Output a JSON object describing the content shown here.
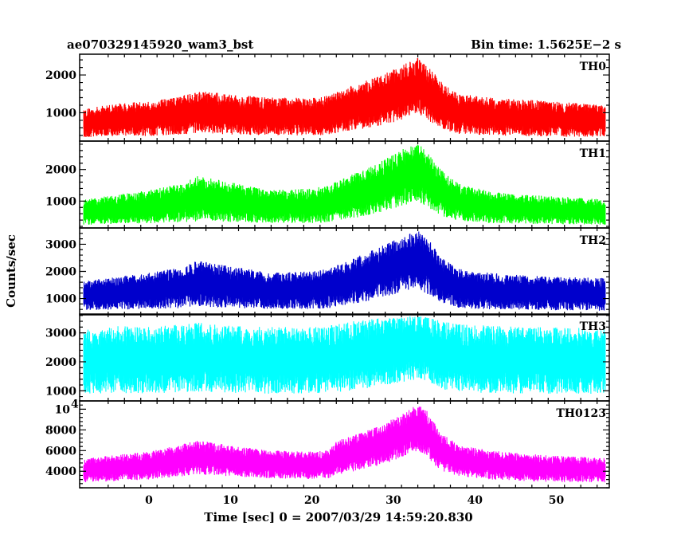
{
  "header": {
    "title_left": "ae070329145920_wam3_bst",
    "title_right": "Bin time: 1.5625E−2 s"
  },
  "chart_data": {
    "type": "line",
    "title": "ae070329145920_wam3_bst",
    "bin_time": "Bin time: 1.5625E−2 s",
    "xlabel": "Time [sec] 0 = 2007/03/29 14:59:20.830",
    "ylabel": "Counts/sec",
    "xlim": [
      -8.5,
      56.5
    ],
    "xticks": [
      0,
      10,
      20,
      30,
      40,
      50
    ],
    "xtick_labels": [
      "0",
      "10",
      "20",
      "30",
      "40",
      "50"
    ],
    "grid": false,
    "panels": [
      {
        "name": "TH0",
        "color": "#ff0000",
        "ylim": [
          250,
          2550
        ],
        "yticks": [
          1000,
          2000
        ],
        "ytick_labels": [
          "1000",
          "2000"
        ],
        "x": [
          -8,
          -4,
          0,
          4,
          6,
          10,
          15,
          20,
          22,
          24,
          26,
          28,
          30,
          32,
          33,
          34,
          36,
          38,
          42,
          46,
          50,
          56
        ],
        "low": [
          350,
          380,
          380,
          420,
          460,
          420,
          400,
          400,
          410,
          500,
          560,
          640,
          740,
          870,
          950,
          820,
          560,
          440,
          400,
          380,
          370,
          350
        ],
        "high": [
          1100,
          1250,
          1300,
          1450,
          1600,
          1480,
          1400,
          1400,
          1450,
          1650,
          1800,
          1950,
          2150,
          2350,
          2450,
          2300,
          1800,
          1500,
          1400,
          1350,
          1300,
          1200
        ]
      },
      {
        "name": "TH1",
        "color": "#00ff00",
        "ylim": [
          150,
          2900
        ],
        "yticks": [
          1000,
          2000
        ],
        "ytick_labels": [
          "1000",
          "2000"
        ],
        "x": [
          -8,
          -4,
          0,
          4,
          6,
          10,
          15,
          20,
          22,
          24,
          26,
          28,
          30,
          32,
          33,
          34,
          36,
          38,
          42,
          46,
          50,
          56
        ],
        "low": [
          250,
          280,
          300,
          330,
          360,
          340,
          300,
          300,
          320,
          420,
          500,
          620,
          760,
          900,
          980,
          840,
          520,
          380,
          300,
          280,
          270,
          250
        ],
        "high": [
          1050,
          1200,
          1350,
          1550,
          1800,
          1600,
          1350,
          1400,
          1500,
          1750,
          1950,
          2200,
          2500,
          2750,
          2850,
          2600,
          1950,
          1550,
          1300,
          1200,
          1150,
          1050
        ]
      },
      {
        "name": "TH2",
        "color": "#0000cc",
        "ylim": [
          400,
          3600
        ],
        "yticks": [
          1000,
          2000,
          3000
        ],
        "ytick_labels": [
          "1000",
          "2000",
          "3000"
        ],
        "x": [
          -8,
          -4,
          0,
          4,
          6,
          10,
          15,
          20,
          22,
          24,
          26,
          28,
          30,
          32,
          33,
          34,
          36,
          38,
          42,
          46,
          50,
          56
        ],
        "low": [
          550,
          600,
          600,
          650,
          700,
          650,
          620,
          620,
          640,
          750,
          850,
          1000,
          1150,
          1300,
          1350,
          1200,
          850,
          650,
          600,
          580,
          560,
          550
        ],
        "high": [
          1650,
          1800,
          1950,
          2150,
          2400,
          2200,
          1950,
          2000,
          2100,
          2350,
          2600,
          2850,
          3150,
          3400,
          3500,
          3300,
          2500,
          2100,
          1950,
          1850,
          1800,
          1750
        ]
      },
      {
        "name": "TH3",
        "color": "#00ffff",
        "ylim": [
          650,
          3650
        ],
        "yticks": [
          1000,
          2000,
          3000
        ],
        "ytick_labels": [
          "1000",
          "2000",
          "3000"
        ],
        "x": [
          -8,
          -4,
          0,
          4,
          6,
          10,
          15,
          20,
          22,
          24,
          26,
          28,
          30,
          32,
          33,
          34,
          36,
          38,
          42,
          46,
          50,
          56
        ],
        "low": [
          900,
          920,
          900,
          930,
          950,
          930,
          900,
          900,
          920,
          980,
          1050,
          1150,
          1250,
          1350,
          1400,
          1300,
          1050,
          950,
          920,
          900,
          900,
          880
        ],
        "high": [
          3100,
          3250,
          3200,
          3300,
          3350,
          3250,
          3200,
          3200,
          3250,
          3350,
          3450,
          3500,
          3550,
          3600,
          3600,
          3550,
          3400,
          3300,
          3250,
          3200,
          3200,
          3150
        ]
      },
      {
        "name": "TH0123",
        "color": "#ff00ff",
        "ylim": [
          2400,
          10800
        ],
        "yticks": [
          4000,
          6000,
          8000,
          10000
        ],
        "ytick_labels": [
          "4000",
          "6000",
          "8000",
          ""
        ],
        "top_tick_label": "10",
        "top_tick_exp": "4",
        "x": [
          -8,
          -4,
          0,
          4,
          6,
          10,
          15,
          20,
          22,
          23,
          24,
          26,
          28,
          30,
          32,
          33,
          34,
          35,
          36,
          38,
          42,
          46,
          50,
          56
        ],
        "low": [
          2900,
          3050,
          3200,
          3500,
          3700,
          3500,
          3300,
          3250,
          3300,
          3700,
          3800,
          4100,
          4500,
          5000,
          5700,
          6000,
          5500,
          4600,
          4000,
          3500,
          3200,
          3050,
          2950,
          2900
        ],
        "high": [
          5200,
          5600,
          5900,
          6600,
          7000,
          6500,
          6000,
          5900,
          6000,
          6900,
          7200,
          7700,
          8300,
          9100,
          10100,
          10500,
          10000,
          8700,
          7600,
          6600,
          6000,
          5700,
          5500,
          5300
        ]
      }
    ]
  }
}
